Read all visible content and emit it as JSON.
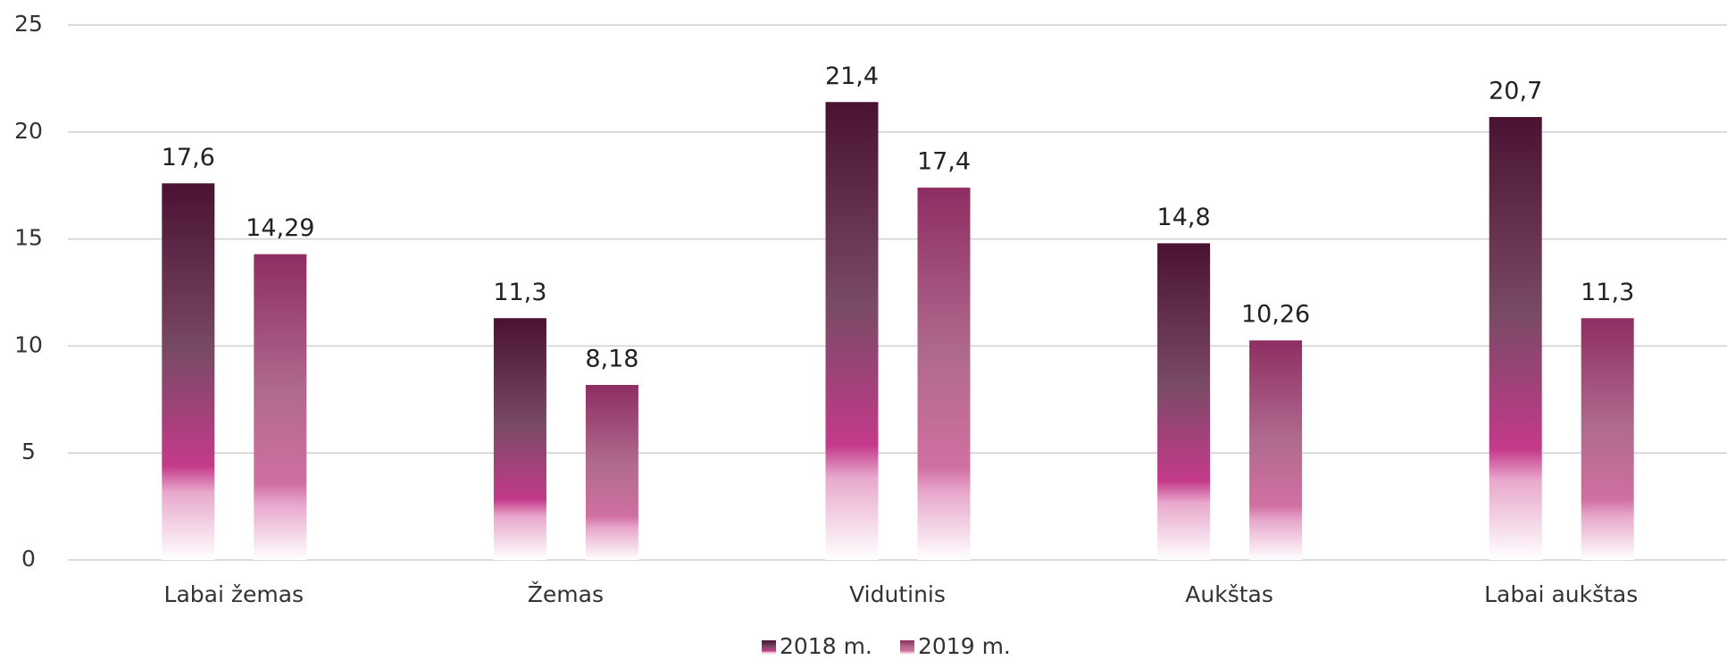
{
  "chart_data": {
    "type": "bar",
    "categories": [
      "Labai žemas",
      "Žemas",
      "Vidutinis",
      "Aukštas",
      "Labai aukštas"
    ],
    "series": [
      {
        "name": "2018 m.",
        "color": "#4a1232",
        "values": [
          17.6,
          11.3,
          21.4,
          14.8,
          20.7
        ],
        "value_labels": [
          "17,6",
          "11,3",
          "21,4",
          "14,8",
          "20,7"
        ]
      },
      {
        "name": "2019 m.",
        "color": "#8e2e62",
        "values": [
          14.29,
          8.18,
          17.4,
          10.26,
          11.3
        ],
        "value_labels": [
          "14,29",
          "8,18",
          "17,4",
          "10,26",
          "11,3"
        ]
      }
    ],
    "ylim": [
      0,
      25
    ],
    "yticks": [
      0,
      5,
      10,
      15,
      20,
      25
    ],
    "grid": true,
    "legend": "bottom"
  }
}
